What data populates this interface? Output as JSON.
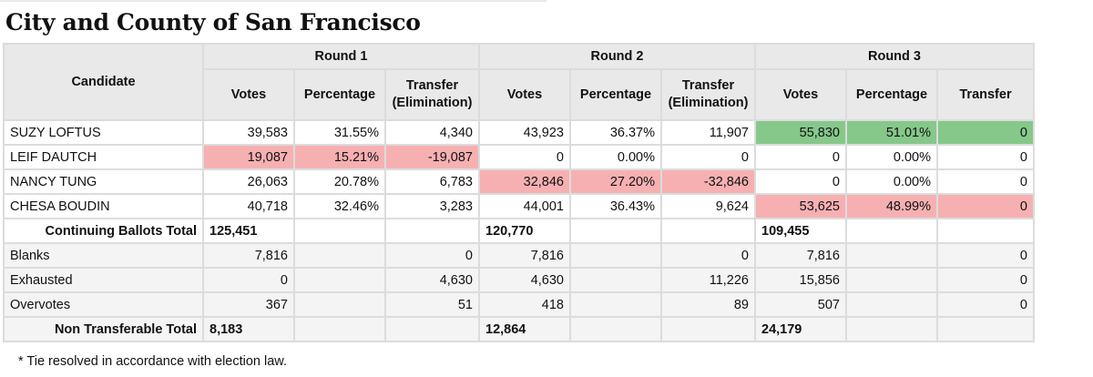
{
  "title": "City and County of San Francisco",
  "header": {
    "candidate": "Candidate",
    "rounds": [
      "Round 1",
      "Round 2",
      "Round 3"
    ],
    "votes": "Votes",
    "percentage": "Percentage",
    "transfer_elim_line1": "Transfer",
    "transfer_elim_line2": "(Elimination)",
    "transfer": "Transfer"
  },
  "rows": [
    {
      "name": "SUZY LOFTUS",
      "r1": [
        "39,583",
        "31.55%",
        "4,340"
      ],
      "r2": [
        "43,923",
        "36.37%",
        "11,907"
      ],
      "r3": [
        "55,830",
        "51.01%",
        "0"
      ]
    },
    {
      "name": "LEIF DAUTCH",
      "r1": [
        "19,087",
        "15.21%",
        "-19,087"
      ],
      "r2": [
        "0",
        "0.00%",
        "0"
      ],
      "r3": [
        "0",
        "0.00%",
        "0"
      ]
    },
    {
      "name": "NANCY TUNG",
      "r1": [
        "26,063",
        "20.78%",
        "6,783"
      ],
      "r2": [
        "32,846",
        "27.20%",
        "-32,846"
      ],
      "r3": [
        "0",
        "0.00%",
        "0"
      ]
    },
    {
      "name": "CHESA BOUDIN",
      "r1": [
        "40,718",
        "32.46%",
        "3,283"
      ],
      "r2": [
        "44,001",
        "36.43%",
        "9,624"
      ],
      "r3": [
        "53,625",
        "48.99%",
        "0"
      ]
    },
    {
      "name": "Continuing Ballots Total",
      "r1": [
        "125,451",
        "",
        ""
      ],
      "r2": [
        "120,770",
        "",
        ""
      ],
      "r3": [
        "109,455",
        "",
        ""
      ]
    },
    {
      "name": "Blanks",
      "r1": [
        "7,816",
        "",
        "0"
      ],
      "r2": [
        "7,816",
        "",
        "0"
      ],
      "r3": [
        "7,816",
        "",
        "0"
      ]
    },
    {
      "name": "Exhausted",
      "r1": [
        "0",
        "",
        "4,630"
      ],
      "r2": [
        "4,630",
        "",
        "11,226"
      ],
      "r3": [
        "15,856",
        "",
        "0"
      ]
    },
    {
      "name": "Overvotes",
      "r1": [
        "367",
        "",
        "51"
      ],
      "r2": [
        "418",
        "",
        "89"
      ],
      "r3": [
        "507",
        "",
        "0"
      ]
    },
    {
      "name": "Non Transferable Total",
      "r1": [
        "8,183",
        "",
        ""
      ],
      "r2": [
        "12,864",
        "",
        ""
      ],
      "r3": [
        "24,179",
        "",
        ""
      ]
    }
  ],
  "footnote": "* Tie resolved in accordance with election law.",
  "colors": {
    "winner": "#86c88a",
    "eliminated": "#f6b0b2",
    "header_bg": "#e9e9e9",
    "border": "#dcdcdc"
  }
}
